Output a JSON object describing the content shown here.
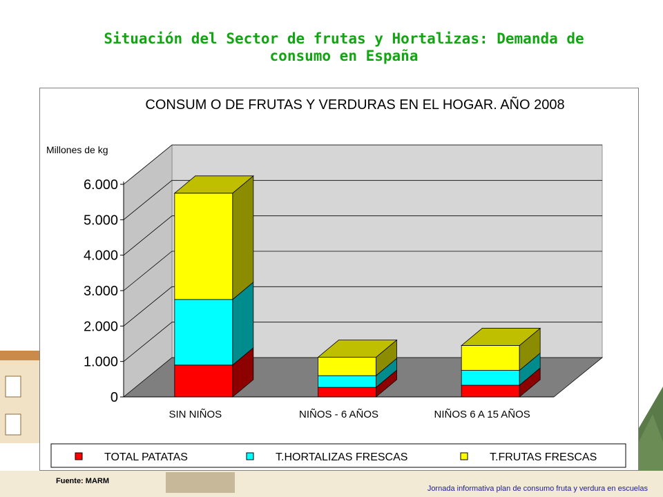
{
  "slide": {
    "title_line1": "Situación del Sector de frutas y  Hortalizas: Demanda de",
    "title_line2": "consumo en España",
    "source": "Fuente:  MARM",
    "footer": "Jornada informativa plan de consumo fruta y verdura en escuelas"
  },
  "colors": {
    "title": "#12a512",
    "wall": "#d6d6d6",
    "floor": "#7f7f7f",
    "patatas": "#ff0000",
    "hortalizas": "#00ffff",
    "frutas": "#ffff00"
  },
  "chart_data": {
    "type": "bar",
    "stacked": true,
    "three_d": true,
    "title": "CONSUM O DE FRUTAS Y VERDURAS EN EL HOGAR. AÑO 2008",
    "ylabel": "Millones de kg",
    "ylim": [
      0,
      6000
    ],
    "yticks": [
      0,
      1000,
      2000,
      3000,
      4000,
      5000,
      6000
    ],
    "ytick_labels": [
      "0",
      "1.000",
      "2.000",
      "3.000",
      "4.000",
      "5.000",
      "6.000"
    ],
    "categories": [
      "SIN NIÑOS",
      "NIÑOS - 6 AÑOS",
      "NIÑOS 6 A 15 AÑOS"
    ],
    "series": [
      {
        "name": "TOTAL PATATAS",
        "color": "#ff0000",
        "values": [
          900,
          270,
          330
        ]
      },
      {
        "name": "T.HORTALIZAS FRESCAS",
        "color": "#00ffff",
        "values": [
          1850,
          330,
          420
        ]
      },
      {
        "name": "T.FRUTAS FRESCAS",
        "color": "#ffff00",
        "values": [
          3000,
          520,
          700
        ]
      }
    ],
    "grid": true,
    "legend": "bottom"
  }
}
